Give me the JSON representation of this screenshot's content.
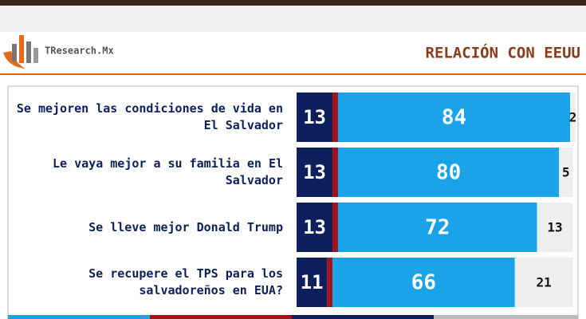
{
  "header": {
    "brand": "TResearch.Mx",
    "title": "RELACIÓN CON EEUU"
  },
  "chart_data": {
    "type": "bar",
    "orientation": "horizontal",
    "stacked": true,
    "categories": [
      "Se mejoren las condiciones de vida en El Salvador",
      "Le vaya mejor a su familia en El Salvador",
      "Se lleve mejor Donald Trump",
      "Se recupere el TPS para los salvadoreños en EUA?"
    ],
    "series": [
      {
        "color": "#0d1f5c",
        "values": [
          13,
          13,
          13,
          11
        ]
      },
      {
        "color": "#a3121b",
        "values": [
          2,
          2,
          2,
          2
        ]
      },
      {
        "color": "#1aa3e8",
        "values": [
          84,
          80,
          72,
          66
        ]
      },
      {
        "color": "#eeeeee",
        "values": [
          2,
          5,
          13,
          21
        ]
      }
    ]
  }
}
